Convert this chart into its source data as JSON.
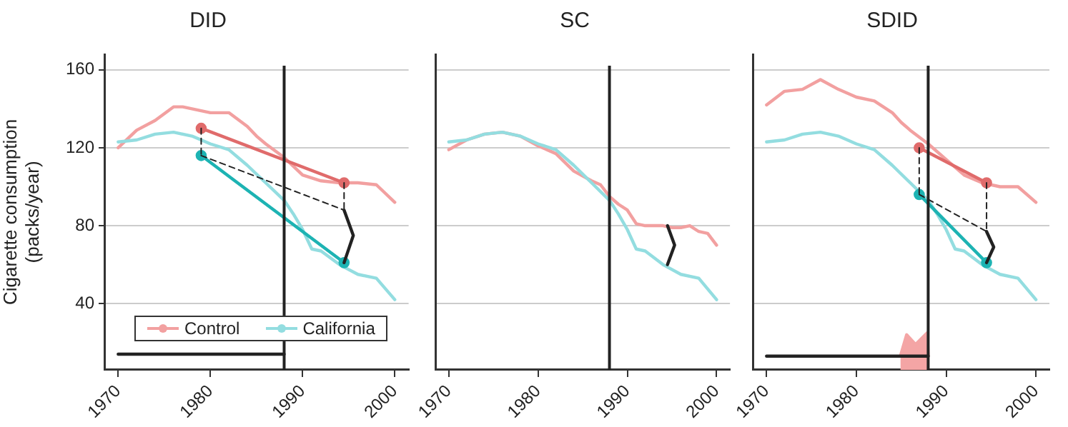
{
  "chart_data": [
    {
      "type": "line",
      "title": "DID",
      "ylabel": "Cigarette consumption\n(packs/year)",
      "xlim": [
        1968.5,
        2001.5
      ],
      "xticks": [
        1970,
        1980,
        1990,
        2000
      ],
      "ylim": [
        6,
        168
      ],
      "yticks": [
        40,
        80,
        120,
        160
      ],
      "grid": "y",
      "legend": "bottom",
      "marker": "none",
      "ref_lines": [
        {
          "axis": "x",
          "value": 1988,
          "color": "#222222"
        }
      ],
      "series": [
        {
          "name": "Control",
          "color": "#f2a0a0",
          "x": [
            1970,
            1972,
            1974,
            1976,
            1977,
            1978,
            1980,
            1982,
            1984,
            1985,
            1986,
            1988,
            1990,
            1992,
            1994,
            1996,
            1998,
            2000
          ],
          "values": [
            120,
            129,
            134,
            141,
            141,
            140,
            138,
            138,
            131,
            126,
            122,
            115,
            106,
            103,
            102,
            102,
            101,
            92
          ]
        },
        {
          "name": "California",
          "color": "#93dde0",
          "x": [
            1970,
            1972,
            1974,
            1976,
            1978,
            1980,
            1982,
            1984,
            1986,
            1988,
            1989,
            1990,
            1991,
            1992,
            1994,
            1996,
            1998,
            2000
          ],
          "values": [
            123,
            124,
            127,
            128,
            126,
            122,
            119,
            111,
            102,
            93,
            86,
            78,
            68,
            67,
            60,
            55,
            53,
            42
          ]
        },
        {
          "color": "#e06b6b",
          "marker": "circle",
          "x": [
            1979,
            1994.5
          ],
          "values": [
            130,
            102
          ]
        },
        {
          "color": "#1db3b3",
          "marker": "circle",
          "x": [
            1979,
            1994.5
          ],
          "values": [
            116,
            61
          ]
        },
        {
          "color": "#222222",
          "line_style": "dashed",
          "x": [
            1979,
            1994.5
          ],
          "values": [
            116,
            88
          ]
        },
        {
          "color": "#222222",
          "line_style": "dashed",
          "x": [
            1979,
            1979
          ],
          "values": [
            130,
            116
          ]
        },
        {
          "color": "#222222",
          "line_style": "dashed",
          "x": [
            1994.5,
            1994.5
          ],
          "values": [
            102,
            88
          ]
        },
        {
          "color": "#222222",
          "x": [
            1994.5,
            1995.5,
            1994.5
          ],
          "values": [
            88,
            75,
            61
          ]
        },
        {
          "color": "#222222",
          "x": [
            1970,
            1988
          ],
          "values": [
            14,
            14
          ]
        }
      ]
    },
    {
      "type": "line",
      "title": "SC",
      "xlim": [
        1968.5,
        2001.5
      ],
      "xticks": [
        1970,
        1980,
        1990,
        2000
      ],
      "ylim": [
        6,
        168
      ],
      "yticks": [
        40,
        80,
        120,
        160
      ],
      "grid": "y",
      "tick_labels": "x",
      "marker": "none",
      "ref_lines": [
        {
          "axis": "x",
          "value": 1988,
          "color": "#222222"
        }
      ],
      "series": [
        {
          "color": "#f2a0a0",
          "x": [
            1970,
            1972,
            1974,
            1976,
            1978,
            1980,
            1982,
            1984,
            1986,
            1987,
            1988,
            1989,
            1990,
            1991,
            1992,
            1994,
            1995,
            1996,
            1997,
            1998,
            1999,
            2000
          ],
          "values": [
            119,
            124,
            127,
            128,
            126,
            121,
            117,
            108,
            103,
            101,
            95,
            91,
            88,
            81,
            80,
            80,
            79,
            79,
            80,
            77,
            76,
            70
          ]
        },
        {
          "color": "#93dde0",
          "x": [
            1970,
            1972,
            1974,
            1976,
            1978,
            1980,
            1982,
            1984,
            1986,
            1988,
            1989,
            1990,
            1991,
            1992,
            1994,
            1996,
            1998,
            2000
          ],
          "values": [
            123,
            124,
            127,
            128,
            126,
            122,
            119,
            111,
            102,
            93,
            86,
            78,
            68,
            67,
            60,
            55,
            53,
            42
          ]
        },
        {
          "color": "#222222",
          "x": [
            1994.5,
            1995.3,
            1994.5
          ],
          "values": [
            80,
            70,
            60
          ]
        }
      ]
    },
    {
      "type": "line",
      "title": "SDID",
      "xlim": [
        1968.5,
        2001.5
      ],
      "xticks": [
        1970,
        1980,
        1990,
        2000
      ],
      "ylim": [
        6,
        168
      ],
      "yticks": [
        40,
        80,
        120,
        160
      ],
      "grid": "y",
      "tick_labels": "x",
      "marker": "none",
      "ref_lines": [
        {
          "axis": "x",
          "value": 1988,
          "color": "#222222"
        }
      ],
      "series": [
        {
          "color": "#f2a0a0",
          "x": [
            1970,
            1972,
            1974,
            1976,
            1978,
            1980,
            1982,
            1984,
            1985,
            1986,
            1988,
            1990,
            1992,
            1994,
            1996,
            1998,
            2000
          ],
          "values": [
            142,
            149,
            150,
            155,
            150,
            146,
            144,
            138,
            133,
            129,
            122,
            114,
            106,
            102,
            100,
            100,
            92
          ]
        },
        {
          "color": "#93dde0",
          "x": [
            1970,
            1972,
            1974,
            1976,
            1978,
            1980,
            1982,
            1984,
            1986,
            1988,
            1989,
            1990,
            1991,
            1992,
            1994,
            1996,
            1998,
            2000
          ],
          "values": [
            123,
            124,
            127,
            128,
            126,
            122,
            119,
            111,
            102,
            93,
            86,
            78,
            68,
            67,
            60,
            55,
            53,
            42
          ]
        },
        {
          "color": "#e06b6b",
          "marker": "circle",
          "x": [
            1987,
            1994.5
          ],
          "values": [
            120,
            102
          ]
        },
        {
          "color": "#1db3b3",
          "marker": "circle",
          "x": [
            1987,
            1994.5
          ],
          "values": [
            96,
            61
          ]
        },
        {
          "color": "#222222",
          "line_style": "dashed",
          "x": [
            1987,
            1994.5
          ],
          "values": [
            96,
            77
          ]
        },
        {
          "color": "#222222",
          "line_style": "dashed",
          "x": [
            1987,
            1987
          ],
          "values": [
            120,
            96
          ]
        },
        {
          "color": "#222222",
          "line_style": "dashed",
          "x": [
            1994.5,
            1994.5
          ],
          "values": [
            102,
            77
          ]
        },
        {
          "color": "#222222",
          "x": [
            1994.5,
            1995.3,
            1994.5
          ],
          "values": [
            77,
            69,
            61
          ]
        },
        {
          "type": "area",
          "color": "#f4a5a5",
          "x": [
            1984.9,
            1985.6,
            1986.6,
            1987.9,
            1988
          ],
          "values": [
            13,
            24,
            19,
            25,
            13
          ]
        },
        {
          "color": "#222222",
          "x": [
            1970,
            1988
          ],
          "values": [
            13,
            13
          ]
        }
      ]
    }
  ]
}
